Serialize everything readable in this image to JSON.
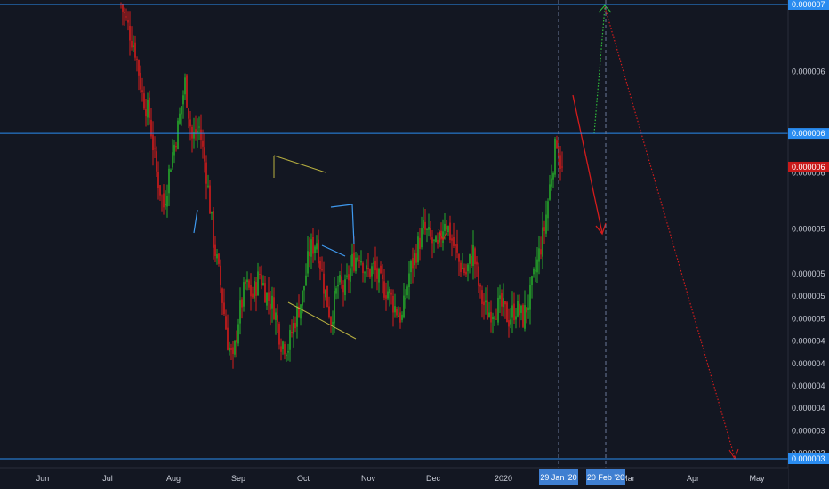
{
  "colors": {
    "background": "#131722",
    "up": "#26a92a",
    "down": "#d41c1c",
    "hline": "#2a8cf0",
    "current_badge": "#c91a1a",
    "axis_text": "#c8ccd6",
    "date_badge": "#3f7fd1",
    "triangle": "#b8b040",
    "wedge": "#3f9af0",
    "projection_up": "#2fbf3a",
    "projection_down": "#d41c1c"
  },
  "chart_data": {
    "type": "candlestick",
    "title": "",
    "xlabel": "",
    "ylabel": "",
    "grid": false,
    "x_ticks": [
      "Jun",
      "Jul",
      "Aug",
      "Sep",
      "Oct",
      "Nov",
      "Dec",
      "2020",
      "Mar",
      "Apr",
      "May"
    ],
    "y_ticks": [
      "0.000007",
      "0.000006",
      "0.000006",
      "0.000006",
      "0.000005",
      "0.000005",
      "0.000005",
      "0.000005",
      "0.000004",
      "0.000004",
      "0.000004",
      "0.000004",
      "0.000003",
      "0.000003"
    ],
    "y_tick_values": [
      7e-06,
      6.4e-06,
      5.85e-06,
      5.5e-06,
      5e-06,
      4.6e-06,
      4.4e-06,
      4.2e-06,
      4e-06,
      3.8e-06,
      3.6e-06,
      3.4e-06,
      3.2e-06,
      3e-06
    ],
    "horizontal_levels": [
      {
        "label": "0.000007",
        "value": 7e-06
      },
      {
        "label": "0.000006",
        "value": 5.85e-06
      },
      {
        "label": "0.000003",
        "value": 2.95e-06
      }
    ],
    "current_price_label": "0.000006",
    "current_price": 5.55e-06,
    "date_markers": [
      "29 Jan '20",
      "20 Feb '20"
    ],
    "close_path": [
      {
        "x": 0,
        "y": 7e-06
      },
      {
        "x": 4,
        "y": 6.8e-06
      },
      {
        "x": 8,
        "y": 6.6e-06
      },
      {
        "x": 12,
        "y": 6.2e-06
      },
      {
        "x": 16,
        "y": 6e-06
      },
      {
        "x": 20,
        "y": 5.5e-06
      },
      {
        "x": 24,
        "y": 5.2e-06
      },
      {
        "x": 28,
        "y": 5.6e-06
      },
      {
        "x": 32,
        "y": 5.9e-06
      },
      {
        "x": 36,
        "y": 6.3e-06
      },
      {
        "x": 40,
        "y": 5.8e-06
      },
      {
        "x": 44,
        "y": 5.9e-06
      },
      {
        "x": 48,
        "y": 5.5e-06
      },
      {
        "x": 52,
        "y": 4.9e-06
      },
      {
        "x": 56,
        "y": 4.5e-06
      },
      {
        "x": 60,
        "y": 4e-06
      },
      {
        "x": 63,
        "y": 3.8e-06
      },
      {
        "x": 66,
        "y": 4.2e-06
      },
      {
        "x": 70,
        "y": 4.5e-06
      },
      {
        "x": 74,
        "y": 4.4e-06
      },
      {
        "x": 78,
        "y": 4.6e-06
      },
      {
        "x": 82,
        "y": 4.4e-06
      },
      {
        "x": 86,
        "y": 4.3e-06
      },
      {
        "x": 90,
        "y": 4e-06
      },
      {
        "x": 94,
        "y": 3.95e-06
      },
      {
        "x": 98,
        "y": 4.2e-06
      },
      {
        "x": 102,
        "y": 4.4e-06
      },
      {
        "x": 106,
        "y": 4.8e-06
      },
      {
        "x": 110,
        "y": 4.9e-06
      },
      {
        "x": 114,
        "y": 4.5e-06
      },
      {
        "x": 118,
        "y": 4.2e-06
      },
      {
        "x": 122,
        "y": 4.5e-06
      },
      {
        "x": 126,
        "y": 4.45e-06
      },
      {
        "x": 130,
        "y": 4.7e-06
      },
      {
        "x": 134,
        "y": 4.8e-06
      },
      {
        "x": 138,
        "y": 4.6e-06
      },
      {
        "x": 142,
        "y": 4.65e-06
      },
      {
        "x": 146,
        "y": 4.5e-06
      },
      {
        "x": 150,
        "y": 4.45e-06
      },
      {
        "x": 154,
        "y": 4.3e-06
      },
      {
        "x": 158,
        "y": 4.2e-06
      },
      {
        "x": 162,
        "y": 4.6e-06
      },
      {
        "x": 166,
        "y": 4.8e-06
      },
      {
        "x": 170,
        "y": 5e-06
      },
      {
        "x": 174,
        "y": 4.9e-06
      },
      {
        "x": 178,
        "y": 4.8e-06
      },
      {
        "x": 182,
        "y": 5.1e-06
      },
      {
        "x": 186,
        "y": 4.9e-06
      },
      {
        "x": 190,
        "y": 4.7e-06
      },
      {
        "x": 194,
        "y": 4.6e-06
      },
      {
        "x": 198,
        "y": 4.8e-06
      },
      {
        "x": 202,
        "y": 4.4e-06
      },
      {
        "x": 206,
        "y": 4.25e-06
      },
      {
        "x": 210,
        "y": 4.3e-06
      },
      {
        "x": 214,
        "y": 4.3e-06
      },
      {
        "x": 218,
        "y": 4.2e-06
      },
      {
        "x": 222,
        "y": 4.3e-06
      },
      {
        "x": 226,
        "y": 4.2e-06
      },
      {
        "x": 230,
        "y": 4.4e-06
      },
      {
        "x": 234,
        "y": 4.7e-06
      },
      {
        "x": 238,
        "y": 5e-06
      },
      {
        "x": 242,
        "y": 5.5e-06
      },
      {
        "x": 245,
        "y": 5.8e-06
      },
      {
        "x": 248,
        "y": 5.5e-06
      }
    ]
  }
}
